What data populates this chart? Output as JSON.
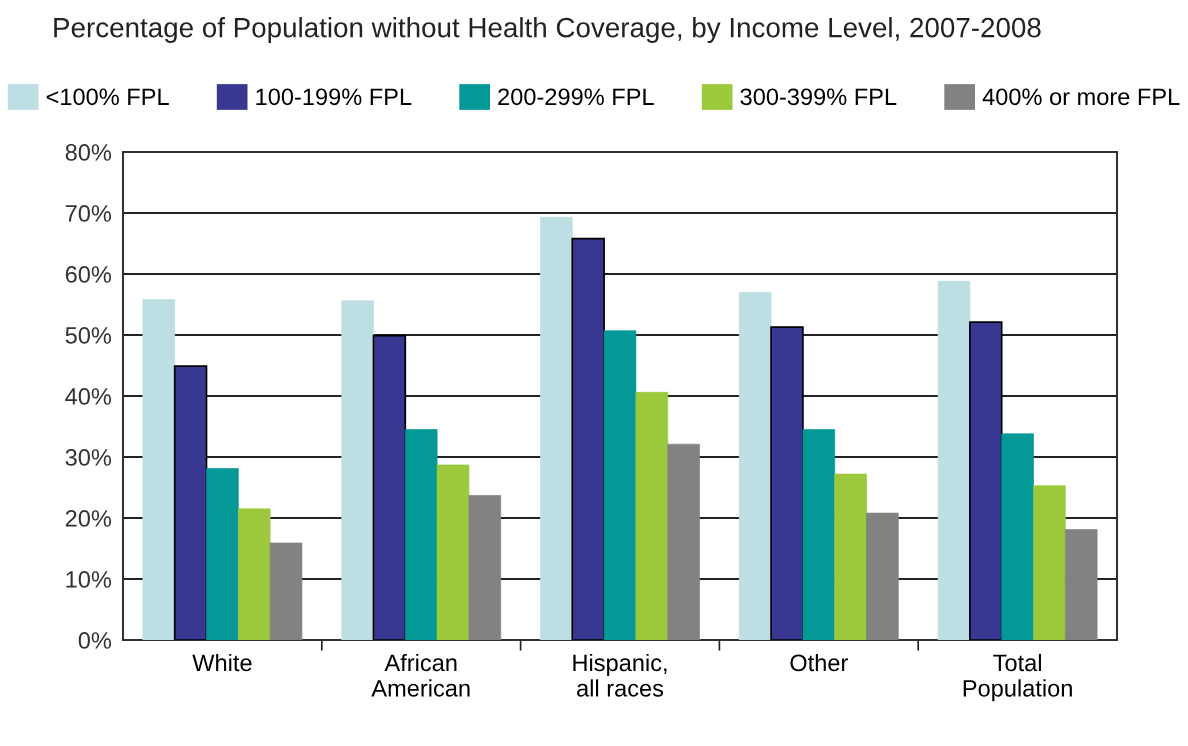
{
  "chart_data": {
    "type": "bar",
    "title": "Percentage of Population without Health Coverage, by Income Level, 2007-2008",
    "categories": [
      "White",
      "African\nAmerican",
      "Hispanic,\nall races",
      "Other",
      "Total\nPopulation"
    ],
    "series": [
      {
        "name": "<100% FPL",
        "color": "#bddfe3",
        "values": [
          55.8,
          55.6,
          69.3,
          57.0,
          58.8
        ]
      },
      {
        "name": "100-199% FPL",
        "color": "#383893",
        "values": [
          44.9,
          49.9,
          65.8,
          51.3,
          52.1
        ]
      },
      {
        "name": "200-299% FPL",
        "color": "#049896",
        "values": [
          28.1,
          34.5,
          50.7,
          34.5,
          33.8
        ]
      },
      {
        "name": "300-399% FPL",
        "color": "#9bc93b",
        "values": [
          21.5,
          28.7,
          40.6,
          27.2,
          25.3
        ]
      },
      {
        "name": "400% or more FPL",
        "color": "#818281",
        "values": [
          15.9,
          23.7,
          32.1,
          20.8,
          18.1
        ]
      }
    ],
    "ylim": [
      0,
      80
    ],
    "yticks": [
      {
        "value": 0,
        "label": "0%"
      },
      {
        "value": 10,
        "label": "10%"
      },
      {
        "value": 20,
        "label": "20%"
      },
      {
        "value": 30,
        "label": "30%"
      },
      {
        "value": 40,
        "label": "40%"
      },
      {
        "value": 50,
        "label": "50%"
      },
      {
        "value": 60,
        "label": "60%"
      },
      {
        "value": 70,
        "label": "70%"
      },
      {
        "value": 80,
        "label": "80%"
      }
    ],
    "grid": "y",
    "legend": "top"
  }
}
